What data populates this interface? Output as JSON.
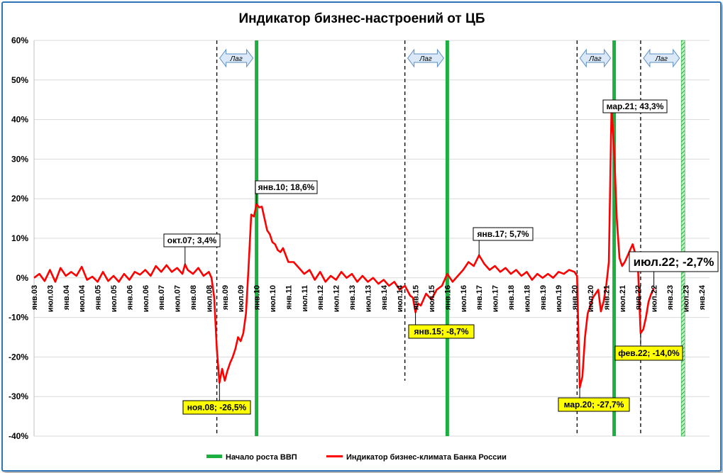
{
  "chart_data": {
    "type": "line",
    "title": "Индикатор бизнес-настроений от ЦБ",
    "ylim": [
      -40,
      60
    ],
    "y_ticks": [
      "60%",
      "50%",
      "40%",
      "30%",
      "20%",
      "10%",
      "0%",
      "-10%",
      "-20%",
      "-30%",
      "-40%"
    ],
    "y_tick_values": [
      60,
      50,
      40,
      30,
      20,
      10,
      0,
      -10,
      -20,
      -30,
      -40
    ],
    "x_range": [
      "янв.03",
      "апр.24"
    ],
    "x_ticks": [
      "янв.03",
      "июл.03",
      "янв.04",
      "июл.04",
      "янв.05",
      "июл.05",
      "янв.06",
      "июл.06",
      "янв.07",
      "июл.07",
      "янв.08",
      "июл.08",
      "янв.09",
      "июл.09",
      "янв.10",
      "июл.10",
      "янв.11",
      "июл.11",
      "янв.12",
      "июл.12",
      "янв.13",
      "июл.13",
      "янв.14",
      "июл.14",
      "янв.15",
      "июл.15",
      "янв.16",
      "июл.16",
      "янв.17",
      "июл.17",
      "янв.18",
      "июл.18",
      "янв.19",
      "июл.19",
      "янв.20",
      "июл.20",
      "янв.21",
      "июл.21",
      "янв.22",
      "июл.22",
      "янв.23",
      "июл.23",
      "янв.24"
    ],
    "gridlines": true,
    "legend_position": "bottom",
    "legend": [
      "Начало роста ВВП",
      "Индикатор бизнес-климата Банка России"
    ],
    "colors": {
      "series": "#ff0000",
      "gdp_growth": "#1db041",
      "gdp_growth_hatched": "#7ccf6c",
      "label_yellow": "#ffff00",
      "lag_arrow": "#dae8f7",
      "lag_arrow_border": "#5b8ec9",
      "frame": "#2e75b6"
    },
    "series": [
      {
        "name": "Индикатор бизнес-климата Банка России",
        "points": [
          [
            "янв.03",
            0.0
          ],
          [
            "мар.03",
            1.0
          ],
          [
            "май.03",
            -0.8
          ],
          [
            "июл.03",
            2.0
          ],
          [
            "сен.03",
            -1.0
          ],
          [
            "ноя.03",
            2.5
          ],
          [
            "янв.04",
            0.5
          ],
          [
            "мар.04",
            1.5
          ],
          [
            "май.04",
            0.5
          ],
          [
            "июл.04",
            2.8
          ],
          [
            "сен.04",
            -0.5
          ],
          [
            "ноя.04",
            0.3
          ],
          [
            "янв.05",
            -1.0
          ],
          [
            "мар.05",
            1.5
          ],
          [
            "май.05",
            -0.8
          ],
          [
            "июл.05",
            0.5
          ],
          [
            "сен.05",
            -1.0
          ],
          [
            "ноя.05",
            1.0
          ],
          [
            "янв.06",
            -0.5
          ],
          [
            "мар.06",
            1.5
          ],
          [
            "май.06",
            0.8
          ],
          [
            "июл.06",
            2.0
          ],
          [
            "сен.06",
            0.5
          ],
          [
            "ноя.06",
            3.0
          ],
          [
            "янв.07",
            1.5
          ],
          [
            "мар.07",
            3.2
          ],
          [
            "май.07",
            1.5
          ],
          [
            "июл.07",
            2.5
          ],
          [
            "сен.07",
            1.0
          ],
          [
            "окт.07",
            3.4
          ],
          [
            "ноя.07",
            2.0
          ],
          [
            "янв.08",
            1.0
          ],
          [
            "мар.08",
            2.5
          ],
          [
            "май.08",
            0.5
          ],
          [
            "июл.08",
            1.5
          ],
          [
            "авг.08",
            0.0
          ],
          [
            "сен.08",
            -5.0
          ],
          [
            "окт.08",
            -18.0
          ],
          [
            "ноя.08",
            -26.5
          ],
          [
            "дек.08",
            -23.0
          ],
          [
            "янв.09",
            -26.0
          ],
          [
            "фев.09",
            -23.5
          ],
          [
            "мар.09",
            -21.5
          ],
          [
            "апр.09",
            -20.0
          ],
          [
            "май.09",
            -18.0
          ],
          [
            "июн.09",
            -15.0
          ],
          [
            "июл.09",
            -16.0
          ],
          [
            "авг.09",
            -14.0
          ],
          [
            "сен.09",
            -9.0
          ],
          [
            "окт.09",
            3.0
          ],
          [
            "ноя.09",
            16.0
          ],
          [
            "дек.09",
            15.5
          ],
          [
            "янв.10",
            18.6
          ],
          [
            "фев.10",
            17.8
          ],
          [
            "мар.10",
            18.0
          ],
          [
            "апр.10",
            15.0
          ],
          [
            "май.10",
            12.0
          ],
          [
            "июн.10",
            11.0
          ],
          [
            "июл.10",
            9.0
          ],
          [
            "авг.10",
            8.5
          ],
          [
            "сен.10",
            7.0
          ],
          [
            "окт.10",
            6.5
          ],
          [
            "ноя.10",
            7.5
          ],
          [
            "янв.11",
            4.0
          ],
          [
            "мар.11",
            4.0
          ],
          [
            "май.11",
            2.5
          ],
          [
            "июл.11",
            1.0
          ],
          [
            "сен.11",
            2.0
          ],
          [
            "ноя.11",
            -0.5
          ],
          [
            "янв.12",
            1.5
          ],
          [
            "мар.12",
            -1.0
          ],
          [
            "май.12",
            0.5
          ],
          [
            "июл.12",
            -0.5
          ],
          [
            "сен.12",
            1.5
          ],
          [
            "ноя.12",
            0.0
          ],
          [
            "янв.13",
            1.0
          ],
          [
            "мар.13",
            -1.0
          ],
          [
            "май.13",
            0.5
          ],
          [
            "июл.13",
            -1.0
          ],
          [
            "сен.13",
            0.0
          ],
          [
            "ноя.13",
            -1.5
          ],
          [
            "янв.14",
            -0.5
          ],
          [
            "мар.14",
            -2.0
          ],
          [
            "май.14",
            -1.0
          ],
          [
            "июл.14",
            -3.0
          ],
          [
            "сен.14",
            -2.0
          ],
          [
            "ноя.14",
            -4.5
          ],
          [
            "дек.14",
            -5.0
          ],
          [
            "янв.15",
            -8.7
          ],
          [
            "фев.15",
            -6.5
          ],
          [
            "мар.15",
            -7.0
          ],
          [
            "май.15",
            -4.0
          ],
          [
            "июл.15",
            -5.5
          ],
          [
            "сен.15",
            -3.0
          ],
          [
            "ноя.15",
            -2.0
          ],
          [
            "янв.16",
            1.0
          ],
          [
            "мар.16",
            -1.0
          ],
          [
            "май.16",
            0.5
          ],
          [
            "июл.16",
            2.0
          ],
          [
            "сен.16",
            4.0
          ],
          [
            "ноя.16",
            3.0
          ],
          [
            "янв.17",
            5.7
          ],
          [
            "мар.17",
            3.5
          ],
          [
            "май.17",
            2.0
          ],
          [
            "июл.17",
            3.0
          ],
          [
            "сен.17",
            1.5
          ],
          [
            "ноя.17",
            2.5
          ],
          [
            "янв.18",
            1.0
          ],
          [
            "мар.18",
            2.0
          ],
          [
            "май.18",
            0.5
          ],
          [
            "июл.18",
            1.5
          ],
          [
            "сен.18",
            -0.5
          ],
          [
            "ноя.18",
            1.0
          ],
          [
            "янв.19",
            0.0
          ],
          [
            "мар.19",
            1.0
          ],
          [
            "май.19",
            0.0
          ],
          [
            "июл.19",
            1.5
          ],
          [
            "сен.19",
            1.0
          ],
          [
            "ноя.19",
            2.0
          ],
          [
            "янв.20",
            1.5
          ],
          [
            "фев.20",
            0.5
          ],
          [
            "мар.20",
            -27.7
          ],
          [
            "апр.20",
            -25.0
          ],
          [
            "май.20",
            -15.0
          ],
          [
            "июн.20",
            -9.0
          ],
          [
            "июл.20",
            -7.0
          ],
          [
            "авг.20",
            -5.0
          ],
          [
            "сен.20",
            -4.0
          ],
          [
            "окт.20",
            -3.0
          ],
          [
            "ноя.20",
            -8.5
          ],
          [
            "дек.20",
            -6.0
          ],
          [
            "янв.21",
            -2.0
          ],
          [
            "фев.21",
            4.0
          ],
          [
            "мар.21",
            43.3
          ],
          [
            "апр.21",
            32.0
          ],
          [
            "май.21",
            15.0
          ],
          [
            "июн.21",
            5.0
          ],
          [
            "июл.21",
            3.0
          ],
          [
            "авг.21",
            4.0
          ],
          [
            "сен.21",
            5.5
          ],
          [
            "окт.21",
            7.0
          ],
          [
            "ноя.21",
            8.5
          ],
          [
            "дек.21",
            6.0
          ],
          [
            "янв.22",
            2.5
          ],
          [
            "фев.22",
            -14.0
          ],
          [
            "мар.22",
            -13.0
          ],
          [
            "апр.22",
            -10.0
          ],
          [
            "май.22",
            -6.0
          ],
          [
            "июн.22",
            -4.0
          ],
          [
            "июл.22",
            -2.7
          ]
        ]
      }
    ],
    "gdp_growth_start": [
      {
        "date": "янв.10",
        "style": "solid"
      },
      {
        "date": "янв.16",
        "style": "solid"
      },
      {
        "date": "апр.21",
        "style": "solid"
      },
      {
        "date": "июн.23",
        "style": "hatched"
      }
    ],
    "dashed_markers": [
      "окт.08",
      "сен.14",
      "фев.20",
      "фев.22"
    ],
    "annotations": [
      {
        "point": "окт.07",
        "text": "окт.07; 3,4%",
        "style": "white"
      },
      {
        "point": "ноя.08",
        "text": "ноя.08; -26,5%",
        "style": "yellow"
      },
      {
        "point": "янв.10",
        "text": "янв.10; 18,6%",
        "style": "white"
      },
      {
        "point": "янв.15",
        "text": "янв.15; -8,7%",
        "style": "yellow"
      },
      {
        "point": "янв.17",
        "text": "янв.17; 5,7%",
        "style": "white"
      },
      {
        "point": "мар.20",
        "text": "мар.20; -27,7%",
        "style": "yellow"
      },
      {
        "point": "мар.21",
        "text": "мар.21; 43,3%",
        "style": "white"
      },
      {
        "point": "фев.22",
        "text": "фев.22; -14,0%",
        "style": "yellow"
      },
      {
        "point": "июл.22",
        "text": "июл.22; -2,7%",
        "style": "white-large"
      }
    ],
    "lag_labels": [
      "Лаг",
      "Лаг",
      "Лаг",
      "Лаг"
    ]
  }
}
